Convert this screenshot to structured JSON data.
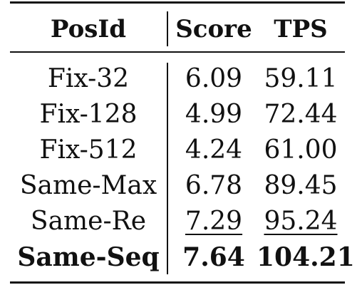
{
  "table": {
    "headers": {
      "posid": "PosId",
      "score": "Score",
      "tps": "TPS"
    },
    "rows": [
      {
        "posid": "Fix-32",
        "score": "6.09",
        "tps": "59.11",
        "style": "normal"
      },
      {
        "posid": "Fix-128",
        "score": "4.99",
        "tps": "72.44",
        "style": "normal"
      },
      {
        "posid": "Fix-512",
        "score": "4.24",
        "tps": "61.00",
        "style": "normal"
      },
      {
        "posid": "Same-Max",
        "score": "6.78",
        "tps": "89.45",
        "style": "normal"
      },
      {
        "posid": "Same-Re",
        "score": "7.29",
        "tps": "95.24",
        "style": "underline"
      },
      {
        "posid": "Same-Seq",
        "score": "7.64",
        "tps": "104.21",
        "style": "bold"
      }
    ]
  }
}
